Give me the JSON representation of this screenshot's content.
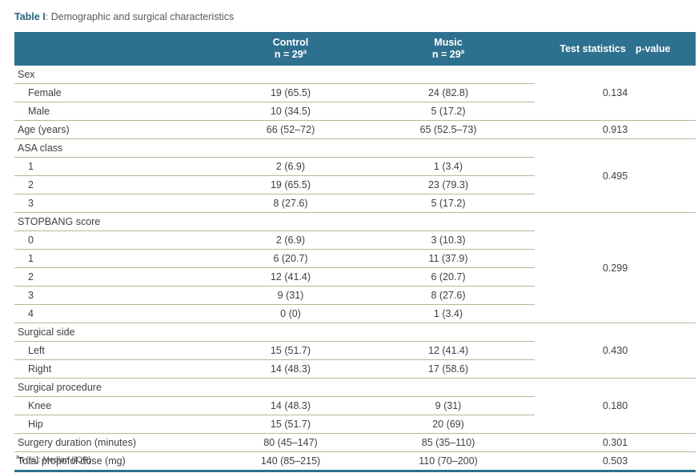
{
  "title": {
    "label": "Table I",
    "rest": ": Demographic and surgical characteristics"
  },
  "header": {
    "row_label_column": "",
    "control": {
      "name": "Control",
      "n": "n = 29",
      "marker": "a"
    },
    "music": {
      "name": "Music",
      "n": "n = 29",
      "marker": "a"
    },
    "stats_label": "Test statistics",
    "pvalue_label": "p-value"
  },
  "sections": [
    {
      "type": "group",
      "name": "Sex",
      "p": "0.134",
      "rows": [
        {
          "label": "Female",
          "control": "19 (65.5)",
          "music": "24 (82.8)"
        },
        {
          "label": "Male",
          "control": "10 (34.5)",
          "music": "5 (17.2)"
        }
      ]
    },
    {
      "type": "single",
      "label": "Age (years)",
      "control": "66 (52–72)",
      "music": "65 (52.5–73)",
      "p": "0.913"
    },
    {
      "type": "group",
      "name": "ASA class",
      "p": "0.495",
      "rows": [
        {
          "label": "1",
          "control": "2 (6.9)",
          "music": "1 (3.4)"
        },
        {
          "label": "2",
          "control": "19 (65.5)",
          "music": "23 (79.3)"
        },
        {
          "label": "3",
          "control": "8 (27.6)",
          "music": "5 (17.2)"
        }
      ]
    },
    {
      "type": "group",
      "name": "STOPBANG score",
      "p": "0.299",
      "rows": [
        {
          "label": "0",
          "control": "2 (6.9)",
          "music": "3 (10.3)"
        },
        {
          "label": "1",
          "control": "6 (20.7)",
          "music": "11 (37.9)"
        },
        {
          "label": "2",
          "control": "12 (41.4)",
          "music": "6 (20.7)"
        },
        {
          "label": "3",
          "control": "9 (31)",
          "music": "8 (27.6)"
        },
        {
          "label": "4",
          "control": "0 (0)",
          "music": "1 (3.4)"
        }
      ]
    },
    {
      "type": "group",
      "name": "Surgical side",
      "p": "0.430",
      "rows": [
        {
          "label": "Left",
          "control": "15 (51.7)",
          "music": "12 (41.4)"
        },
        {
          "label": "Right",
          "control": "14 (48.3)",
          "music": "17 (58.6)"
        }
      ]
    },
    {
      "type": "group",
      "name": "Surgical procedure",
      "p": "0.180",
      "rows": [
        {
          "label": "Knee",
          "control": "14 (48.3)",
          "music": "9 (31)"
        },
        {
          "label": "Hip",
          "control": "15 (51.7)",
          "music": "20 (69)"
        }
      ]
    },
    {
      "type": "single",
      "label": "Surgery duration (minutes)",
      "control": "80 (45–147)",
      "music": "85 (35–110)",
      "p": "0.301"
    },
    {
      "type": "single",
      "label": "Total propofol dose (mg)",
      "control": "140 (85–215)",
      "music": "110 (70–200)",
      "p": "0.503"
    }
  ],
  "footnote": {
    "marker": "a",
    "text": "n (%): Median (IQR)"
  },
  "colors": {
    "header_bg": "#2e708f",
    "accent_dark": "#246681",
    "line": "#bdb499",
    "text": "#3f4041",
    "muted": "#58595b"
  }
}
